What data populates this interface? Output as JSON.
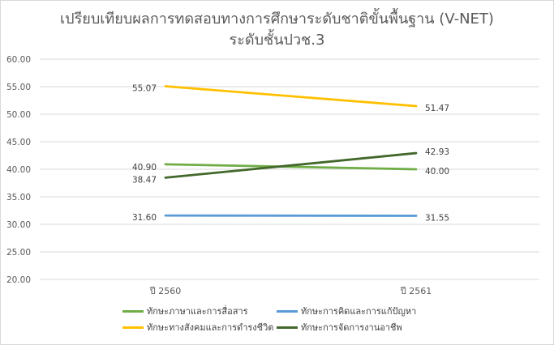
{
  "chart_data": {
    "type": "line",
    "title": "เปรียบเทียบผลการทดสอบทางการศึกษาระดับชาติขั้นพื้นฐาน (V-NET)",
    "subtitle": "ระดับชั้นปวช.3",
    "categories": [
      "ปี 2560",
      "ปี 2561"
    ],
    "ylim": [
      20,
      60
    ],
    "yticks": [
      "20.00",
      "25.00",
      "30.00",
      "35.00",
      "40.00",
      "45.00",
      "50.00",
      "55.00",
      "60.00"
    ],
    "grid": true,
    "legend_position": "bottom",
    "series": [
      {
        "name": "ทักษะภาษาและการสื่อสาร",
        "values": [
          40.9,
          40.0
        ],
        "labels": [
          "40.90",
          "40.00"
        ],
        "color": "#70ad47"
      },
      {
        "name": "ทักษะการคิดและการแก้ปัญหา",
        "values": [
          31.6,
          31.55
        ],
        "labels": [
          "31.60",
          "31.55"
        ],
        "color": "#5b9bd5"
      },
      {
        "name": "ทักษะทางสังคมและการดำรงชีวิต",
        "values": [
          55.07,
          51.47
        ],
        "labels": [
          "55.07",
          "51.47"
        ],
        "color": "#ffc000"
      },
      {
        "name": "ทักษะการจัดการงานอาชีพ",
        "values": [
          38.47,
          42.93
        ],
        "labels": [
          "38.47",
          "42.93"
        ],
        "color": "#43682b"
      }
    ]
  }
}
